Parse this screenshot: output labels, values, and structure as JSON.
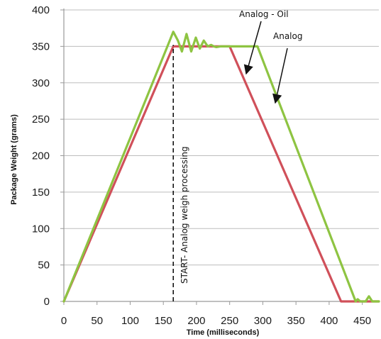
{
  "chart_data": {
    "type": "line",
    "title": "",
    "xlabel": "Time (milliseconds)",
    "ylabel": "Package Weight (grams)",
    "xlim": [
      0,
      475
    ],
    "ylim": [
      0,
      400
    ],
    "x_ticks": [
      0,
      50,
      100,
      150,
      200,
      250,
      300,
      350,
      400,
      450
    ],
    "y_ticks": [
      0,
      50,
      100,
      150,
      200,
      250,
      300,
      350,
      400
    ],
    "grid": {
      "horizontal": true,
      "vertical": false
    },
    "series": [
      {
        "name": "Analog - Oil",
        "color": "#d0505a",
        "points": [
          [
            0,
            0
          ],
          [
            165,
            350
          ],
          [
            250,
            350
          ],
          [
            418,
            0
          ],
          [
            475,
            0
          ]
        ]
      },
      {
        "name": "Analog",
        "color": "#8ec442",
        "points": [
          [
            0,
            0
          ],
          [
            157,
            352
          ],
          [
            165,
            370
          ],
          [
            172,
            358
          ],
          [
            178,
            343
          ],
          [
            185,
            367
          ],
          [
            192,
            343
          ],
          [
            199,
            362
          ],
          [
            205,
            347
          ],
          [
            211,
            358
          ],
          [
            217,
            350
          ],
          [
            222,
            352
          ],
          [
            226,
            350
          ],
          [
            230,
            349
          ],
          [
            236,
            350
          ],
          [
            292,
            350
          ],
          [
            440,
            0
          ],
          [
            443,
            3
          ],
          [
            447,
            0
          ],
          [
            455,
            0
          ],
          [
            460,
            7
          ],
          [
            465,
            0
          ],
          [
            475,
            0
          ]
        ]
      }
    ],
    "annotations": [
      {
        "id": "start",
        "text": "START- Analog weigh processing",
        "x": 165
      },
      {
        "id": "oil",
        "text": "Analog - Oil"
      },
      {
        "id": "analog",
        "text": "Analog"
      }
    ],
    "colors": {
      "grid": "#bdbdbd",
      "axis": "#9a9a9a",
      "marker_line": "#111111"
    }
  }
}
